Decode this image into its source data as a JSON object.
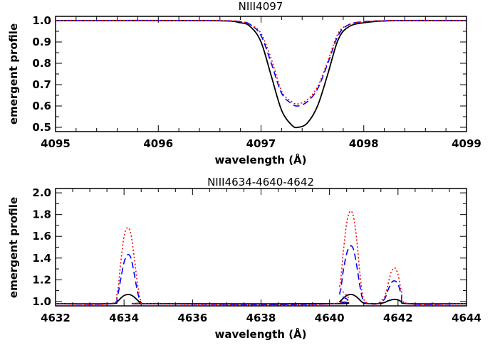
{
  "chart_data": [
    {
      "type": "line",
      "title": "NIII4097",
      "xlabel": "wavelength (Å)",
      "ylabel": "emergent profile",
      "xlim": [
        4095,
        4099
      ],
      "ylim": [
        0.48,
        1.02
      ],
      "xticks": [
        4095,
        4096,
        4097,
        4098,
        4099
      ],
      "xtick_labels": [
        "4095",
        "4096",
        "4097",
        "4098",
        "4099"
      ],
      "xminor": 5,
      "yticks": [
        0.5,
        0.6,
        0.7,
        0.8,
        0.9,
        1.0
      ],
      "ytick_labels": [
        "0.5",
        "0.6",
        "0.7",
        "0.8",
        "0.9",
        "1.0"
      ],
      "yminor": 2,
      "grid": false,
      "series": [
        {
          "style": "solid",
          "color": "#000000",
          "x": [
            4095.0,
            4096.5,
            4096.8,
            4096.9,
            4097.0,
            4097.1,
            4097.2,
            4097.3,
            4097.36,
            4097.45,
            4097.55,
            4097.65,
            4097.75,
            4097.85,
            4098.0,
            4098.3,
            4099.0
          ],
          "y": [
            1.0,
            1.0,
            0.99,
            0.97,
            0.9,
            0.74,
            0.58,
            0.51,
            0.5,
            0.52,
            0.6,
            0.75,
            0.91,
            0.97,
            0.99,
            1.0,
            1.0
          ]
        },
        {
          "style": "dash",
          "color": "#0000ff",
          "x": [
            4095.0,
            4096.5,
            4096.8,
            4096.9,
            4097.0,
            4097.1,
            4097.2,
            4097.3,
            4097.36,
            4097.45,
            4097.55,
            4097.65,
            4097.75,
            4097.85,
            4098.0,
            4098.3,
            4099.0
          ],
          "y": [
            1.0,
            1.0,
            0.995,
            0.98,
            0.93,
            0.8,
            0.66,
            0.61,
            0.6,
            0.62,
            0.68,
            0.8,
            0.93,
            0.98,
            0.995,
            1.0,
            1.0
          ]
        },
        {
          "style": "dot",
          "color": "#ff0000",
          "x": [
            4095.0,
            4096.5,
            4096.8,
            4096.9,
            4097.0,
            4097.1,
            4097.2,
            4097.3,
            4097.36,
            4097.45,
            4097.55,
            4097.65,
            4097.75,
            4097.85,
            4098.0,
            4098.3,
            4099.0
          ],
          "y": [
            1.0,
            1.0,
            0.995,
            0.98,
            0.94,
            0.82,
            0.67,
            0.62,
            0.61,
            0.63,
            0.69,
            0.81,
            0.94,
            0.98,
            0.995,
            1.0,
            1.0
          ]
        }
      ]
    },
    {
      "type": "line",
      "title": "NIII4634-4640-4642",
      "xlabel": "wavelength (Å)",
      "ylabel": "emergent profile",
      "xlim": [
        4632,
        4644
      ],
      "ylim": [
        0.96,
        2.04
      ],
      "xticks": [
        4632,
        4634,
        4636,
        4638,
        4640,
        4642,
        4644
      ],
      "xtick_labels": [
        "4632",
        "4634",
        "4636",
        "4638",
        "4640",
        "4642",
        "4644"
      ],
      "xminor": 4,
      "yticks": [
        1.0,
        1.2,
        1.4,
        1.6,
        1.8,
        2.0
      ],
      "ytick_labels": [
        "1.0",
        "1.2",
        "1.4",
        "1.6",
        "1.8",
        "2.0"
      ],
      "yminor": 2,
      "grid": false,
      "series": [
        {
          "style": "solid",
          "color": "#000000",
          "x": [
            4632.0,
            4633.6,
            4633.8,
            4633.9,
            4634.0,
            4634.1,
            4634.2,
            4634.3,
            4634.4,
            4634.5,
            4634.7,
            4640.1,
            4640.3,
            4640.4,
            4640.5,
            4640.6,
            4640.7,
            4640.8,
            4640.9,
            4641.0,
            4641.2,
            4641.4,
            4641.6,
            4641.7,
            4641.8,
            4641.9,
            4642.0,
            4642.1,
            4642.3,
            4644.0
          ],
          "y": [
            0.98,
            0.98,
            1.0,
            1.03,
            1.055,
            1.065,
            1.06,
            1.04,
            1.01,
            0.985,
            0.98,
            0.98,
            1.0,
            1.03,
            1.055,
            1.065,
            1.06,
            1.04,
            1.01,
            0.985,
            0.98,
            0.98,
            0.99,
            1.005,
            1.015,
            1.02,
            1.015,
            1.0,
            0.98,
            0.98
          ]
        },
        {
          "style": "dash",
          "color": "#0000ff",
          "x": [
            4632.0,
            4633.6,
            4633.8,
            4633.9,
            4634.0,
            4634.1,
            4634.2,
            4634.3,
            4634.4,
            4634.5,
            4634.7,
            4640.1,
            4640.3,
            4640.4,
            4640.5,
            4640.6,
            4640.7,
            4640.8,
            4640.9,
            4641.0,
            4641.2,
            4641.4,
            4641.6,
            4641.7,
            4641.8,
            4641.9,
            4642.0,
            4642.1,
            4642.3,
            4644.0
          ],
          "y": [
            0.98,
            0.98,
            1.05,
            1.2,
            1.36,
            1.43,
            1.4,
            1.25,
            1.08,
            0.99,
            0.98,
            0.98,
            1.08,
            1.28,
            1.44,
            1.51,
            1.48,
            1.32,
            1.12,
            1.0,
            0.98,
            0.98,
            1.02,
            1.1,
            1.17,
            1.19,
            1.16,
            1.07,
            0.98,
            0.98
          ]
        },
        {
          "style": "dot",
          "color": "#ff0000",
          "x": [
            4632.0,
            4633.6,
            4633.8,
            4633.9,
            4634.0,
            4634.1,
            4634.2,
            4634.3,
            4634.4,
            4634.5,
            4634.7,
            4640.1,
            4640.3,
            4640.4,
            4640.5,
            4640.6,
            4640.7,
            4640.8,
            4640.9,
            4641.0,
            4641.2,
            4641.4,
            4641.6,
            4641.7,
            4641.8,
            4641.9,
            4642.0,
            4642.1,
            4642.3,
            4644.0
          ],
          "y": [
            0.98,
            0.98,
            1.08,
            1.35,
            1.6,
            1.68,
            1.62,
            1.4,
            1.15,
            1.0,
            0.98,
            0.98,
            1.15,
            1.45,
            1.72,
            1.83,
            1.78,
            1.55,
            1.22,
            1.02,
            0.98,
            0.98,
            1.04,
            1.15,
            1.27,
            1.31,
            1.25,
            1.1,
            0.98,
            0.98
          ]
        }
      ]
    }
  ]
}
